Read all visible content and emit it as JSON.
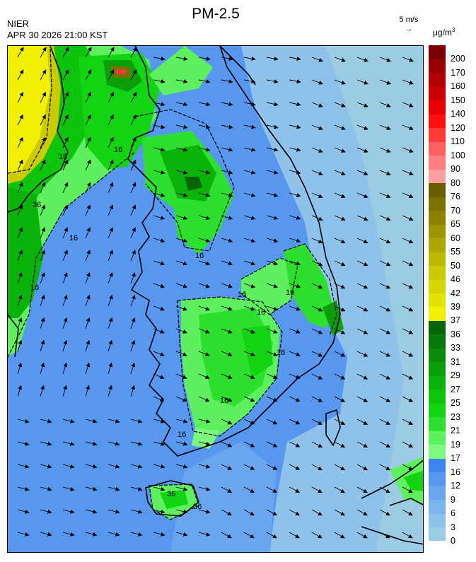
{
  "header": {
    "agency": "NIER",
    "timestamp": "APR 30 2026 21:00 KST",
    "title": "PM-2.5"
  },
  "wind_reference": {
    "label": "5 m/s",
    "arrow_glyph": "→"
  },
  "legend": {
    "unit_base": "μg/m",
    "unit_exp": "3",
    "levels": [
      {
        "label": "0",
        "color": "#9ccbe4"
      },
      {
        "label": "3",
        "color": "#8ec2ea"
      },
      {
        "label": "6",
        "color": "#7cb4ee"
      },
      {
        "label": "9",
        "color": "#6aa6f0"
      },
      {
        "label": "12",
        "color": "#5797f0"
      },
      {
        "label": "16",
        "color": "#3d86ee"
      },
      {
        "label": "17",
        "color": "#7dfa7d"
      },
      {
        "label": "19",
        "color": "#5ef05e"
      },
      {
        "label": "21",
        "color": "#2ee02e"
      },
      {
        "label": "23",
        "color": "#12d412"
      },
      {
        "label": "25",
        "color": "#0cc40c"
      },
      {
        "label": "27",
        "color": "#0ab30a"
      },
      {
        "label": "29",
        "color": "#0a9f0a"
      },
      {
        "label": "31",
        "color": "#0a8c0a"
      },
      {
        "label": "33",
        "color": "#087808"
      },
      {
        "label": "36",
        "color": "#066606"
      },
      {
        "label": "37",
        "color": "#f2f000"
      },
      {
        "label": "39",
        "color": "#e6e200"
      },
      {
        "label": "42",
        "color": "#d8d400"
      },
      {
        "label": "46",
        "color": "#cccb00"
      },
      {
        "label": "50",
        "color": "#bdb800"
      },
      {
        "label": "55",
        "color": "#aea700"
      },
      {
        "label": "60",
        "color": "#9e9400"
      },
      {
        "label": "65",
        "color": "#8c8200"
      },
      {
        "label": "70",
        "color": "#7a7000"
      },
      {
        "label": "76",
        "color": "#6a5d00"
      },
      {
        "label": "80",
        "color": "#ffa0a0"
      },
      {
        "label": "90",
        "color": "#ff8080"
      },
      {
        "label": "100",
        "color": "#ff6060"
      },
      {
        "label": "110",
        "color": "#ff3a3a"
      },
      {
        "label": "120",
        "color": "#ff1010"
      },
      {
        "label": "140",
        "color": "#e60000"
      },
      {
        "label": "150",
        "color": "#cc0000"
      },
      {
        "label": "160",
        "color": "#b00000"
      },
      {
        "label": "170",
        "color": "#960000"
      },
      {
        "label": "200",
        "color": "#780000"
      }
    ]
  },
  "map": {
    "contour_labels": [
      "16",
      "16",
      "16",
      "16",
      "16",
      "16",
      "16",
      "16",
      "16",
      "16",
      "16",
      "36",
      "36",
      "36"
    ]
  }
}
